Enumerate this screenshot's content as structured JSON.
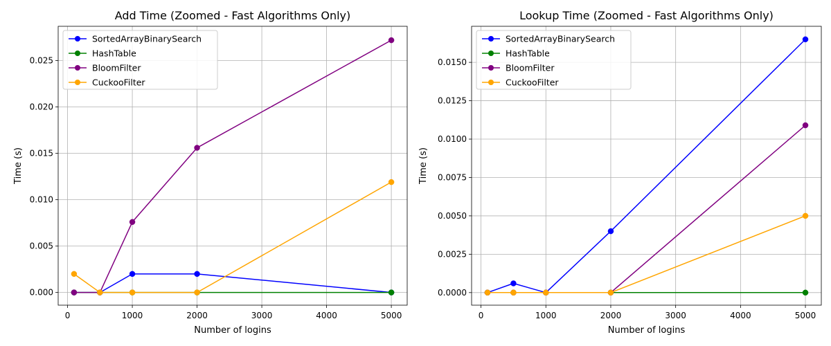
{
  "chart_data": [
    {
      "type": "line",
      "title": "Add Time (Zoomed - Fast Algorithms Only)",
      "xlabel": "Number of logins",
      "ylabel": "Time (s)",
      "x": [
        100,
        500,
        1000,
        2000,
        5000
      ],
      "xlim": [
        -145,
        5245
      ],
      "ylim": [
        -0.00137,
        0.0287
      ],
      "xticks": [
        0,
        1000,
        2000,
        3000,
        4000,
        5000
      ],
      "xtick_labels": [
        "0",
        "1000",
        "2000",
        "3000",
        "4000",
        "5000"
      ],
      "yticks": [
        0,
        0.005,
        0.01,
        0.015,
        0.02,
        0.025
      ],
      "ytick_labels": [
        "0.000",
        "0.005",
        "0.010",
        "0.015",
        "0.020",
        "0.025"
      ],
      "grid": true,
      "legend_position": "upper-left",
      "series": [
        {
          "name": "SortedArrayBinarySearch",
          "color": "#0000ff",
          "values": [
            0.0,
            0.0,
            0.002,
            0.002,
            0.0
          ]
        },
        {
          "name": "HashTable",
          "color": "#008000",
          "values": [
            0.0,
            0.0,
            0.0,
            0.0,
            0.0
          ]
        },
        {
          "name": "BloomFilter",
          "color": "#800080",
          "values": [
            0.0,
            0.0,
            0.0076,
            0.0156,
            0.0272
          ]
        },
        {
          "name": "CuckooFilter",
          "color": "#ffa500",
          "values": [
            0.002,
            0.0,
            0.0,
            0.0,
            0.0119
          ]
        }
      ]
    },
    {
      "type": "line",
      "title": "Lookup Time (Zoomed - Fast Algorithms Only)",
      "xlabel": "Number of logins",
      "ylabel": "Time (s)",
      "x": [
        100,
        500,
        1000,
        2000,
        5000
      ],
      "xlim": [
        -145,
        5245
      ],
      "ylim": [
        -0.00082,
        0.01735
      ],
      "xticks": [
        0,
        1000,
        2000,
        3000,
        4000,
        5000
      ],
      "xtick_labels": [
        "0",
        "1000",
        "2000",
        "3000",
        "4000",
        "5000"
      ],
      "yticks": [
        0,
        0.0025,
        0.005,
        0.0075,
        0.01,
        0.0125,
        0.015
      ],
      "ytick_labels": [
        "0.0000",
        "0.0025",
        "0.0050",
        "0.0075",
        "0.0100",
        "0.0125",
        "0.0150"
      ],
      "grid": true,
      "legend_position": "upper-left",
      "series": [
        {
          "name": "SortedArrayBinarySearch",
          "color": "#0000ff",
          "values": [
            0.0,
            0.0006,
            0.0,
            0.004,
            0.0165
          ]
        },
        {
          "name": "HashTable",
          "color": "#008000",
          "values": [
            0.0,
            0.0,
            0.0,
            0.0,
            0.0
          ]
        },
        {
          "name": "BloomFilter",
          "color": "#800080",
          "values": [
            0.0,
            0.0,
            0.0,
            0.0,
            0.0109
          ]
        },
        {
          "name": "CuckooFilter",
          "color": "#ffa500",
          "values": [
            0.0,
            0.0,
            0.0,
            0.0,
            0.005
          ]
        }
      ]
    }
  ]
}
